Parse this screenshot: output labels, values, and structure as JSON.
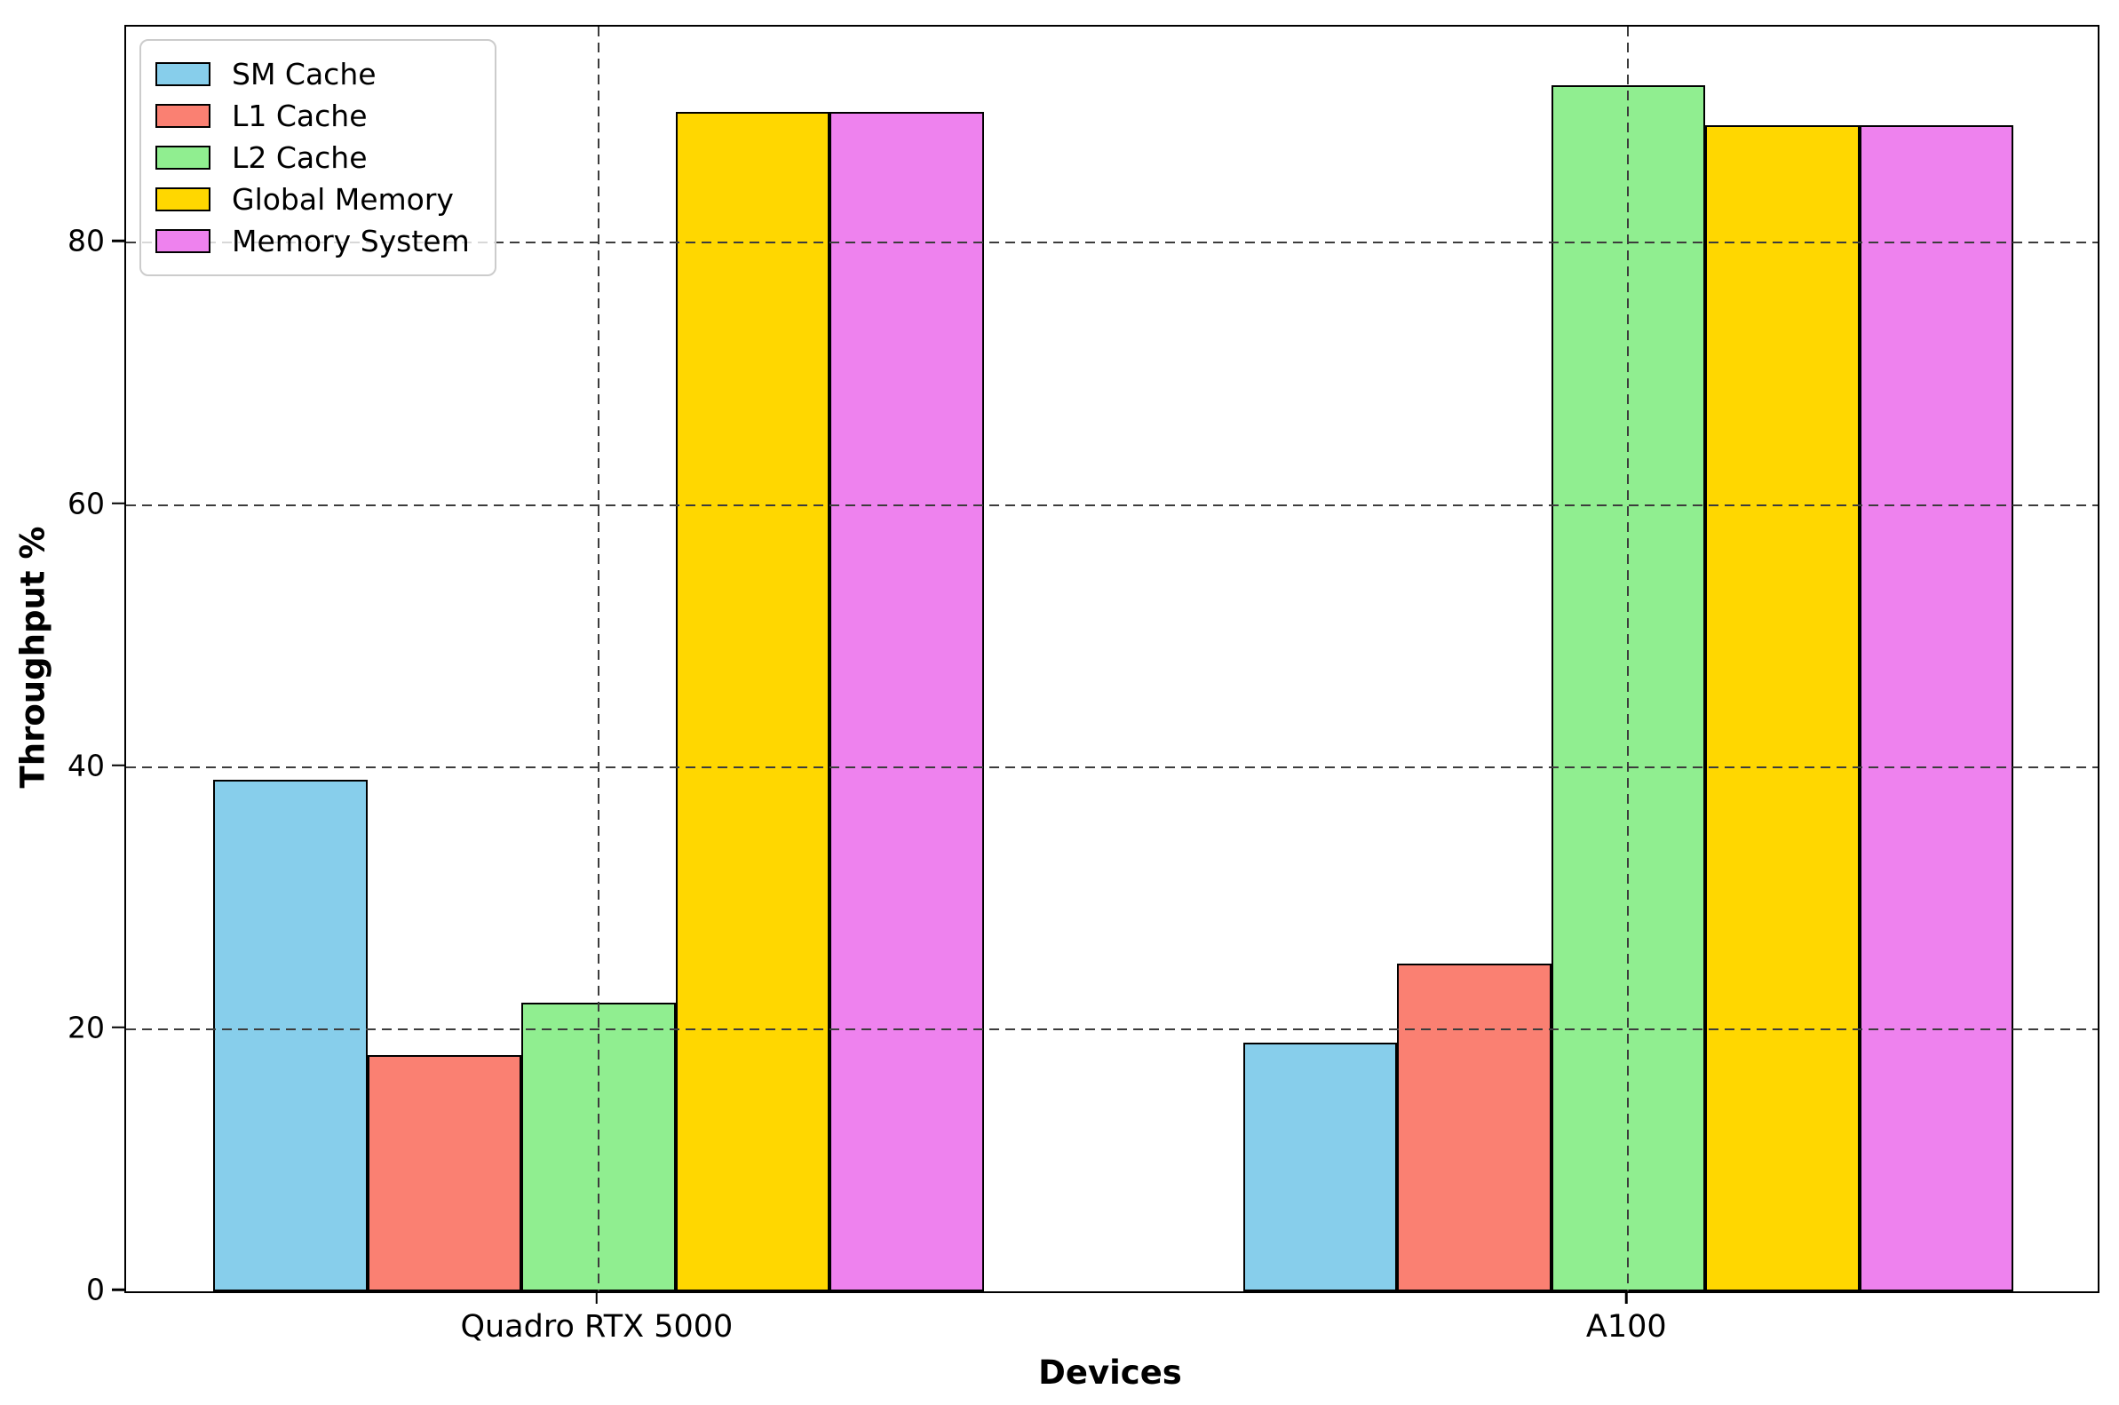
{
  "chart_data": {
    "type": "bar",
    "title": "",
    "xlabel": "Devices",
    "ylabel": "Throughput %",
    "categories": [
      "Quadro RTX 5000",
      "A100"
    ],
    "series": [
      {
        "name": "SM Cache",
        "color": "#87CEEB",
        "values": [
          39,
          19
        ]
      },
      {
        "name": "L1 Cache",
        "color": "#FA8072",
        "values": [
          18,
          25
        ]
      },
      {
        "name": "L2 Cache",
        "color": "#90EE90",
        "values": [
          22,
          92
        ]
      },
      {
        "name": "Global Memory",
        "color": "#FFD700",
        "values": [
          90,
          89
        ]
      },
      {
        "name": "Memory System",
        "color": "#EE82EE",
        "values": [
          90,
          89
        ]
      }
    ],
    "yticks": [
      0,
      20,
      40,
      60,
      80
    ],
    "ylim": [
      0,
      96.5
    ],
    "grid": "dashed",
    "grid_color": "#3c3c3c",
    "legend_position": "upper-left",
    "bar_edge_color": "#000000",
    "axis_color": "#000000",
    "background_color": "#ffffff"
  }
}
